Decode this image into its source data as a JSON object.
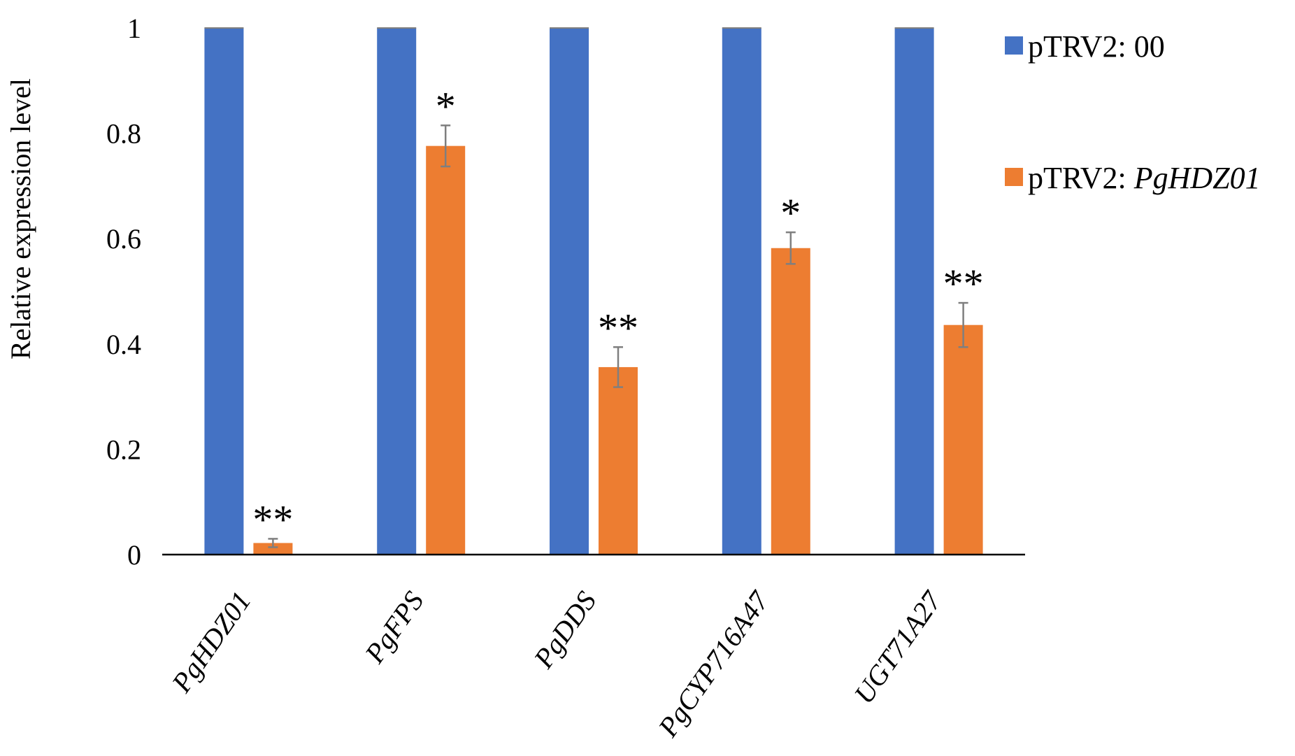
{
  "chart_data": {
    "type": "bar",
    "title": "",
    "xlabel": "",
    "ylabel": "Relative expression level",
    "ylim": [
      0,
      1
    ],
    "yticks": [
      "0",
      "0.2",
      "0.4",
      "0.6",
      "0.8",
      "1"
    ],
    "categories": [
      "PgHDZ01",
      "PgFPS",
      "PgDDS",
      "PgCYP716A47",
      "UGT71A27"
    ],
    "series": [
      {
        "name": "pTRV2: 00",
        "color": "#4472C4",
        "values": [
          1,
          1,
          1,
          1,
          1
        ],
        "errors": [
          0,
          0,
          0,
          0,
          0
        ],
        "significance": [
          "",
          "",
          "",
          "",
          ""
        ]
      },
      {
        "name": "pTRV2: PgHDZ01",
        "name_prefix": "pTRV2: ",
        "name_italic": "PgHDZ01",
        "color": "#ED7D31",
        "values": [
          0.022,
          0.776,
          0.356,
          0.582,
          0.436
        ],
        "errors": [
          0.008,
          0.039,
          0.038,
          0.03,
          0.042
        ],
        "significance": [
          "**",
          "*",
          "**",
          "*",
          "**"
        ]
      }
    ],
    "legend_position": "right",
    "grid": false
  }
}
